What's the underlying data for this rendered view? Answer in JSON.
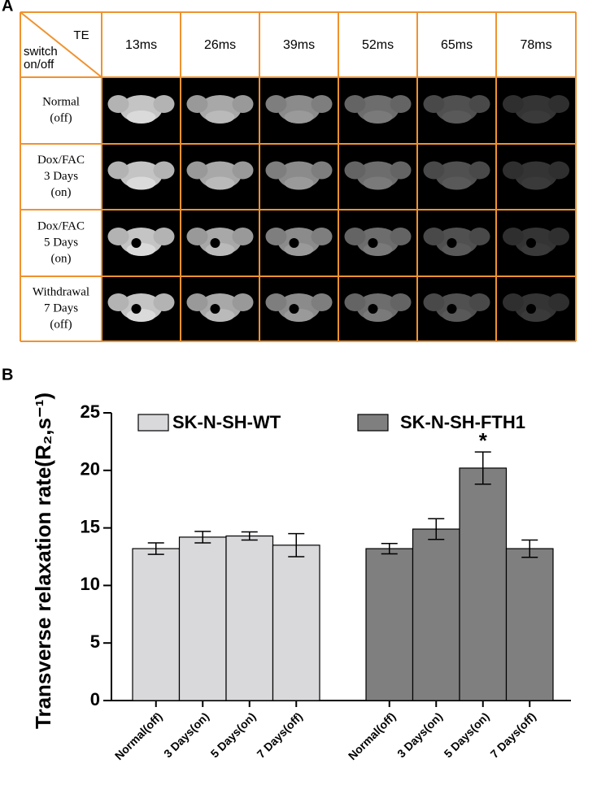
{
  "panel_a": {
    "label": "A",
    "corner_te": "TE",
    "corner_switch": [
      "switch",
      "on/off"
    ],
    "te_values": [
      "13ms",
      "26ms",
      "39ms",
      "52ms",
      "65ms",
      "78ms"
    ],
    "rows": [
      [
        "Normal",
        "(off)"
      ],
      [
        "Dox/FAC",
        "3 Days",
        "(on)"
      ],
      [
        "Dox/FAC",
        "5 Days",
        "(on)"
      ],
      [
        "Withdrawal",
        "7 Days",
        "(off)"
      ]
    ]
  },
  "chart_data": {
    "type": "bar",
    "panel_label": "B",
    "y_label": "Transverse relaxation rate(R₂,s⁻¹)",
    "categories": [
      "Normal(off)",
      "3 Days(on)",
      "5 Days(on)",
      "7 Days(off)"
    ],
    "series": [
      {
        "name": "SK-N-SH-WT",
        "color": "#d9d9db",
        "values": [
          13.2,
          14.2,
          14.3,
          13.5
        ],
        "errors": [
          0.5,
          0.5,
          0.35,
          1.0
        ]
      },
      {
        "name": "SK-N-SH-FTH1",
        "color": "#7f7f7f",
        "values": [
          13.2,
          14.9,
          20.2,
          13.2
        ],
        "errors": [
          0.45,
          0.9,
          1.4,
          0.75
        ]
      }
    ],
    "annotation": "*",
    "ylim": [
      0,
      25
    ],
    "yticks": [
      0,
      5,
      10,
      15,
      20,
      25
    ]
  }
}
